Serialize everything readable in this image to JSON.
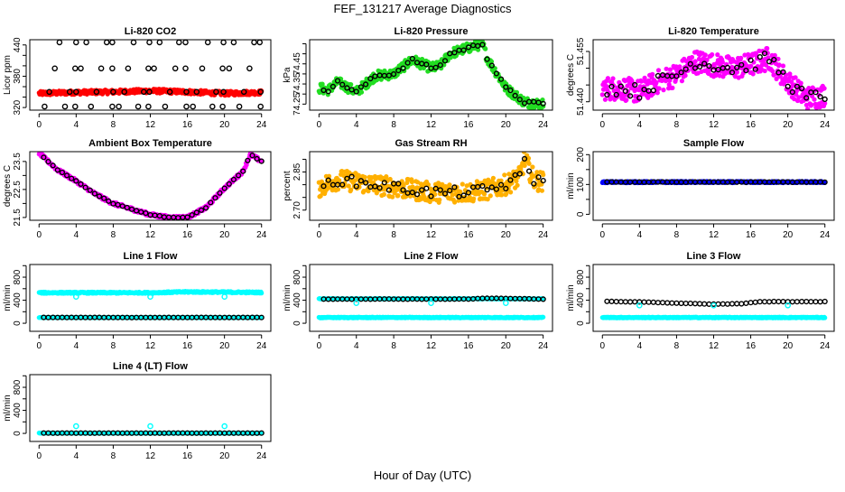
{
  "title": "FEF_131217  Average Diagnostics",
  "xlabel": "Hour of Day (UTC)",
  "chart_data": [
    {
      "type": "scatter",
      "title": "Li-820 CO2",
      "ylabel": "Licor ppm",
      "xlim": [
        -1,
        25
      ],
      "ylim": [
        315,
        450
      ],
      "xticks": [
        0,
        4,
        8,
        12,
        16,
        20,
        24
      ],
      "yticks": [
        320,
        340,
        360,
        380,
        400,
        420,
        440
      ],
      "ylabels": [
        320,
        380,
        440
      ],
      "series": [
        {
          "name": "raw",
          "kind": "band",
          "color": "#ff0000",
          "x": [
            0,
            4,
            8,
            12,
            16,
            20,
            24
          ],
          "y": [
            347,
            349,
            350,
            352,
            350,
            347,
            349
          ],
          "spread": 8
        },
        {
          "name": "avg-high",
          "kind": "points",
          "color": "#000000",
          "y_const": 445,
          "x": [
            2.2,
            4,
            5.1,
            7.3,
            7.9,
            10.2,
            11.9,
            13,
            15.1,
            15.8,
            18.2,
            19.9,
            21,
            23.2,
            23.8
          ]
        },
        {
          "name": "avg-mid",
          "kind": "points",
          "color": "#000000",
          "y_const": 395,
          "x": [
            1.7,
            3.9,
            4.5,
            6.7,
            7.9,
            9.6,
            11.8,
            12.4,
            14.7,
            15.8,
            17.6,
            19.8,
            20.5,
            22.7
          ]
        },
        {
          "name": "avg",
          "kind": "points",
          "color": "#000000",
          "y_const": 350,
          "x": [
            1.1,
            3.3,
            4,
            6.2,
            8,
            9.2,
            11.3,
            11.9,
            14.1,
            15.9,
            17,
            19.1,
            19.9,
            22.1,
            23.9
          ]
        },
        {
          "name": "avg-low",
          "kind": "points",
          "color": "#000000",
          "y_const": 322,
          "x": [
            0.6,
            2.8,
            3.9,
            5.6,
            7.9,
            8.6,
            10.7,
            11.8,
            13.6,
            15.9,
            16.6,
            18.7,
            19.8,
            21.6,
            23.9
          ]
        }
      ]
    },
    {
      "type": "scatter",
      "title": "Li-820 Pressure",
      "ylabel": "kPa",
      "xlim": [
        -1,
        25
      ],
      "ylim": [
        74.22,
        74.57
      ],
      "xticks": [
        0,
        4,
        8,
        12,
        16,
        20,
        24
      ],
      "yticks": [
        74.25,
        74.3,
        74.35,
        74.4,
        74.45,
        74.5,
        74.55
      ],
      "ylabels": [
        "74.25",
        "74.35",
        "74.45"
      ],
      "series": [
        {
          "name": "raw",
          "kind": "band",
          "color": "#22dd22",
          "x": [
            0,
            1,
            2,
            4,
            6,
            8,
            10,
            11,
            12,
            13,
            14,
            16,
            17.5,
            18,
            20,
            22,
            24
          ],
          "y": [
            74.33,
            74.32,
            74.36,
            74.31,
            74.39,
            74.4,
            74.47,
            74.45,
            74.43,
            74.44,
            74.5,
            74.53,
            74.55,
            74.48,
            74.33,
            74.26,
            74.25
          ],
          "spread": 0.05
        },
        {
          "name": "avg",
          "kind": "curve-points",
          "color": "#000000",
          "x": [
            0,
            1,
            2,
            4,
            6,
            8,
            10,
            11,
            12,
            13,
            14,
            16,
            17.5,
            18,
            20,
            22,
            24
          ],
          "y": [
            74.33,
            74.32,
            74.36,
            74.31,
            74.39,
            74.4,
            74.47,
            74.45,
            74.43,
            74.44,
            74.5,
            74.53,
            74.55,
            74.48,
            74.33,
            74.26,
            74.25
          ],
          "spread": 0.015
        }
      ]
    },
    {
      "type": "scatter",
      "title": "Li-820 Temperature",
      "ylabel": "degrees C",
      "xlim": [
        -1,
        25
      ],
      "ylim": [
        51.4375,
        51.4585
      ],
      "xticks": [
        0,
        4,
        8,
        12,
        16,
        20,
        24
      ],
      "yticks": [
        51.44,
        51.445,
        51.45,
        51.455
      ],
      "ylabels": [
        "51.440",
        "51.455"
      ],
      "series": [
        {
          "name": "raw",
          "kind": "band",
          "color": "#ff00ff",
          "x": [
            0,
            2,
            4,
            6,
            8,
            10,
            12,
            14,
            16,
            18,
            20,
            22,
            24
          ],
          "y": [
            51.444,
            51.444,
            51.443,
            51.446,
            51.448,
            51.452,
            51.451,
            51.45,
            51.451,
            51.453,
            51.446,
            51.441,
            51.442
          ],
          "spread": 0.007
        },
        {
          "name": "avg",
          "kind": "curve-points",
          "color": "#000000",
          "x": [
            0,
            2,
            4,
            6,
            8,
            10,
            12,
            14,
            16,
            18,
            20,
            22,
            24
          ],
          "y": [
            51.444,
            51.444,
            51.443,
            51.446,
            51.448,
            51.452,
            51.451,
            51.45,
            51.451,
            51.453,
            51.446,
            51.441,
            51.442
          ],
          "spread": 0.004
        }
      ]
    },
    {
      "type": "scatter",
      "title": "Ambient Box Temperature",
      "ylabel": "degrees C",
      "xlim": [
        -1,
        25
      ],
      "ylim": [
        21.4,
        23.85
      ],
      "xticks": [
        0,
        4,
        8,
        12,
        16,
        20,
        24
      ],
      "yticks": [
        21.5,
        22,
        22.5,
        23,
        23.5
      ],
      "ylabels": [
        "21.5",
        "22.5",
        "23.5"
      ],
      "series": [
        {
          "name": "raw",
          "kind": "band",
          "color": "#ff00ff",
          "x": [
            0,
            2,
            4,
            6,
            8,
            10,
            12,
            14,
            16,
            18,
            20,
            22,
            22.8,
            24
          ],
          "y": [
            23.8,
            23.2,
            22.8,
            22.35,
            22.0,
            21.8,
            21.6,
            21.5,
            21.5,
            21.85,
            22.55,
            23.15,
            23.75,
            23.5
          ],
          "spread": 0.12
        },
        {
          "name": "avg",
          "kind": "curve-points",
          "color": "#000000",
          "x": [
            0,
            2,
            4,
            6,
            8,
            10,
            12,
            14,
            16,
            18,
            20,
            22,
            22.8,
            24
          ],
          "y": [
            23.8,
            23.2,
            22.8,
            22.35,
            22.0,
            21.8,
            21.6,
            21.5,
            21.5,
            21.85,
            22.55,
            23.15,
            23.75,
            23.5
          ],
          "spread": 0.02
        }
      ]
    },
    {
      "type": "scatter",
      "title": "Gas Stream RH",
      "ylabel": "percent",
      "xlim": [
        -1,
        25
      ],
      "ylim": [
        2.66,
        2.93
      ],
      "xticks": [
        0,
        4,
        8,
        12,
        16,
        20,
        24
      ],
      "yticks": [
        2.7,
        2.75,
        2.8,
        2.85,
        2.9
      ],
      "ylabels": [
        "2.70",
        "2.85"
      ],
      "series": [
        {
          "name": "raw",
          "kind": "band",
          "color": "#ffb000",
          "x": [
            0,
            2,
            4,
            6,
            8,
            10,
            12,
            14,
            16,
            18,
            20,
            21.5,
            22,
            23,
            24
          ],
          "y": [
            2.79,
            2.82,
            2.81,
            2.8,
            2.79,
            2.78,
            2.77,
            2.77,
            2.77,
            2.78,
            2.8,
            2.83,
            2.9,
            2.82,
            2.81
          ],
          "spread": 0.08
        },
        {
          "name": "avg",
          "kind": "curve-points",
          "color": "#000000",
          "x": [
            0,
            2,
            4,
            6,
            8,
            10,
            12,
            14,
            16,
            18,
            20,
            21.5,
            22,
            23,
            24
          ],
          "y": [
            2.79,
            2.82,
            2.81,
            2.8,
            2.79,
            2.78,
            2.77,
            2.77,
            2.77,
            2.78,
            2.8,
            2.83,
            2.9,
            2.82,
            2.81
          ],
          "spread": 0.04
        }
      ]
    },
    {
      "type": "scatter",
      "title": "Sample Flow",
      "ylabel": "ml/min",
      "xlim": [
        -1,
        25
      ],
      "ylim": [
        -20,
        210
      ],
      "xticks": [
        0,
        4,
        8,
        12,
        16,
        20,
        24
      ],
      "yticks": [
        0,
        50,
        100,
        150,
        200
      ],
      "ylabels": [
        0,
        100,
        200
      ],
      "series": [
        {
          "name": "raw",
          "kind": "band",
          "color": "#0000ff",
          "x": [
            0,
            24
          ],
          "y": [
            108,
            108
          ],
          "spread": 5
        },
        {
          "name": "avg",
          "kind": "curve-points",
          "color": "#000000",
          "x": [
            0,
            24
          ],
          "y": [
            108,
            108
          ],
          "spread": 1
        }
      ]
    },
    {
      "type": "scatter",
      "title": "Line 1 Flow",
      "ylabel": "ml/min",
      "xlim": [
        -1,
        25
      ],
      "ylim": [
        -140,
        1020
      ],
      "xticks": [
        0,
        4,
        8,
        12,
        16,
        20,
        24
      ],
      "yticks": [
        0,
        200,
        400,
        600,
        800,
        1000
      ],
      "ylabels": [
        0,
        400,
        800
      ],
      "series": [
        {
          "name": "raw-a",
          "kind": "band",
          "color": "#00ffff",
          "x": [
            0,
            12,
            16,
            24
          ],
          "y": [
            530,
            530,
            545,
            535
          ],
          "spread": 25
        },
        {
          "name": "raw-b",
          "kind": "band",
          "color": "#00ffff",
          "x": [
            0,
            24
          ],
          "y": [
            100,
            100
          ],
          "spread": 6
        },
        {
          "name": "avg",
          "kind": "curve-points",
          "color": "#000000",
          "x": [
            0,
            24
          ],
          "y": [
            100,
            100
          ],
          "spread": 2
        },
        {
          "name": "avg-a",
          "kind": "points",
          "color": "#00ffff",
          "y_const": 460,
          "x": [
            4,
            12,
            20
          ]
        }
      ]
    },
    {
      "type": "scatter",
      "title": "Line 2 Flow",
      "ylabel": "ml/min",
      "xlim": [
        -1,
        25
      ],
      "ylim": [
        -140,
        1020
      ],
      "xticks": [
        0,
        4,
        8,
        12,
        16,
        20,
        24
      ],
      "yticks": [
        0,
        200,
        400,
        600,
        800,
        1000
      ],
      "ylabels": [
        0,
        400,
        800
      ],
      "series": [
        {
          "name": "raw-b",
          "kind": "band",
          "color": "#00ffff",
          "x": [
            0,
            24
          ],
          "y": [
            100,
            100
          ],
          "spread": 15
        },
        {
          "name": "raw-a",
          "kind": "band",
          "color": "#00ffff",
          "x": [
            0,
            24
          ],
          "y": [
            425,
            425
          ],
          "spread": 10
        },
        {
          "name": "avg",
          "kind": "curve-points",
          "color": "#000000",
          "x": [
            0,
            16,
            18,
            24
          ],
          "y": [
            420,
            420,
            435,
            420
          ],
          "spread": 4
        },
        {
          "name": "avg-b",
          "kind": "points",
          "color": "#00ffff",
          "y_const": 350,
          "x": [
            4,
            12,
            20
          ]
        }
      ]
    },
    {
      "type": "scatter",
      "title": "Line 3 Flow",
      "ylabel": "ml/min",
      "xlim": [
        -1,
        25
      ],
      "ylim": [
        -140,
        1020
      ],
      "xticks": [
        0,
        4,
        8,
        12,
        16,
        20,
        24
      ],
      "yticks": [
        0,
        200,
        400,
        600,
        800,
        1000
      ],
      "ylabels": [
        0,
        400,
        800
      ],
      "series": [
        {
          "name": "raw-b",
          "kind": "band",
          "color": "#00ffff",
          "x": [
            0,
            24
          ],
          "y": [
            100,
            100
          ],
          "spread": 15
        },
        {
          "name": "avg",
          "kind": "curve-points",
          "color": "#000000",
          "x": [
            0,
            4,
            8,
            12,
            15,
            17,
            24
          ],
          "y": [
            380,
            370,
            350,
            330,
            340,
            375,
            375
          ],
          "spread": 4
        },
        {
          "name": "avg-b",
          "kind": "points",
          "color": "#00ffff",
          "y_const": 310,
          "x": [
            4,
            12,
            20
          ]
        }
      ]
    },
    {
      "type": "scatter",
      "title": "Line 4 (LT) Flow",
      "ylabel": "ml/min",
      "xlim": [
        -1,
        25
      ],
      "ylim": [
        -140,
        1020
      ],
      "xticks": [
        0,
        4,
        8,
        12,
        16,
        20,
        24
      ],
      "yticks": [
        0,
        200,
        400,
        600,
        800,
        1000
      ],
      "ylabels": [
        0,
        400,
        800
      ],
      "series": [
        {
          "name": "raw",
          "kind": "band",
          "color": "#00ffff",
          "x": [
            0,
            24
          ],
          "y": [
            5,
            5
          ],
          "spread": 6
        },
        {
          "name": "avg",
          "kind": "curve-points",
          "color": "#000000",
          "x": [
            0,
            24
          ],
          "y": [
            5,
            5
          ],
          "spread": 1
        },
        {
          "name": "avg-outliers",
          "kind": "points",
          "color": "#00ffff",
          "y_const": 125,
          "x": [
            4,
            12,
            20
          ]
        }
      ]
    }
  ]
}
